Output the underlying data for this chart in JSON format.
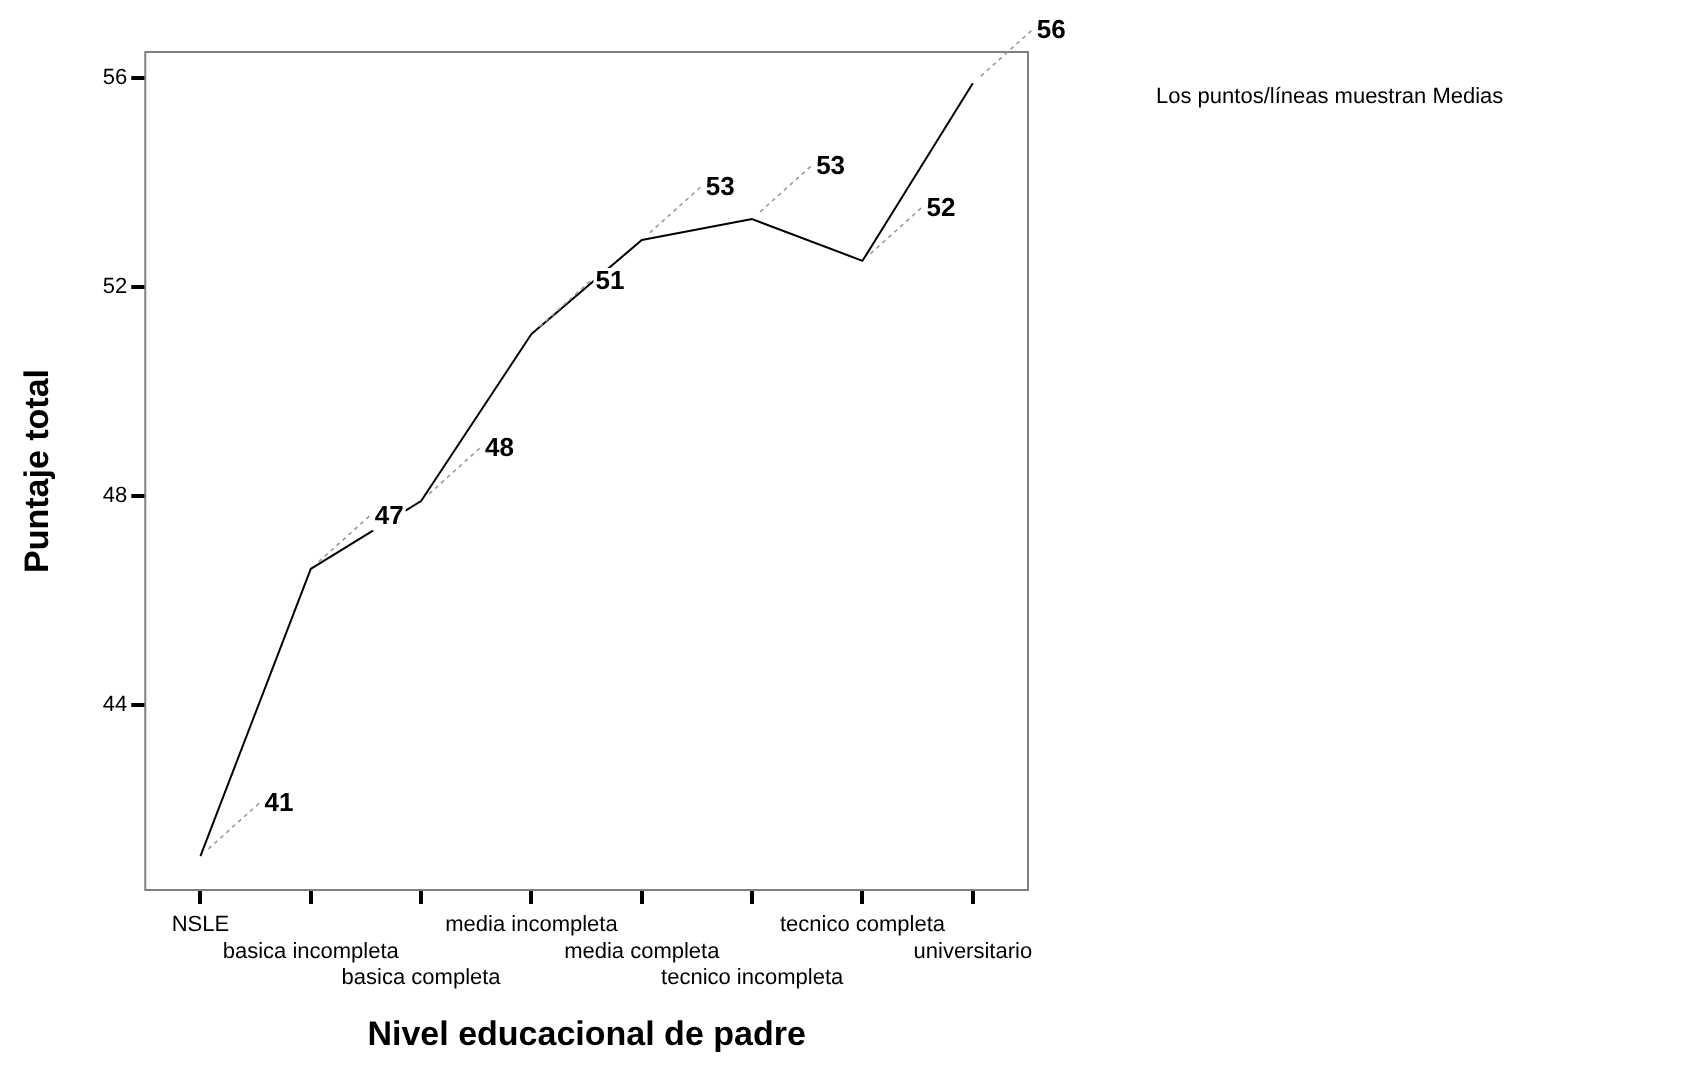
{
  "chart_data": {
    "type": "line",
    "xlabel": "Nivel educacional de padre",
    "ylabel": "Puntaje total",
    "categories": [
      "NSLE",
      "basica incompleta",
      "basica completa",
      "media incompleta",
      "media completa",
      "tecnico incompleta",
      "tecnico completa",
      "universitario"
    ],
    "series": [
      {
        "color": "#000000",
        "values": [
          41.1,
          46.6,
          47.9,
          51.1,
          52.9,
          53.3,
          52.5,
          55.9
        ],
        "value_labels": [
          "41",
          "47",
          "48",
          "51",
          "53",
          "53",
          "52",
          "56"
        ]
      }
    ],
    "ylim": [
      40.45,
      56.5
    ],
    "yticks": [
      44,
      48,
      52,
      56
    ],
    "grid": false,
    "legend": false,
    "marker": "none",
    "line_style": "solid",
    "annotations": [
      "Los puntos/líneas muestran Medias"
    ]
  }
}
